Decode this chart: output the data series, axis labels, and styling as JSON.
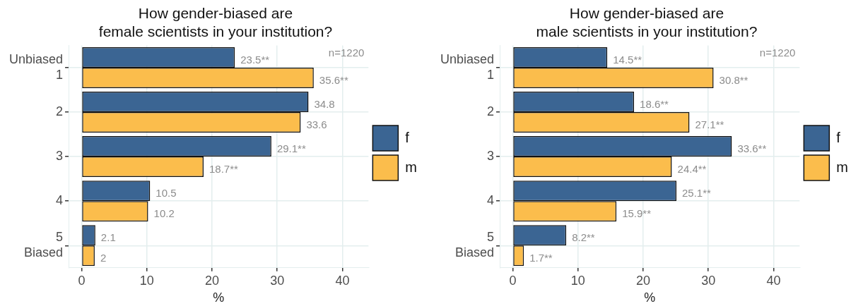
{
  "chart_data": [
    {
      "type": "bar",
      "orientation": "horizontal",
      "title": "How gender-biased are\nfemale scientists in your institution?",
      "xlabel": "%",
      "categories": [
        "Unbiased\n1",
        "2",
        "3",
        "4",
        "5\nBiased"
      ],
      "series": [
        {
          "name": "f",
          "color": "#3b6593",
          "values": [
            23.5,
            34.8,
            29.1,
            10.5,
            2.1
          ],
          "value_labels": [
            "23.5**",
            "34.8",
            "29.1**",
            "10.5",
            "2.1"
          ]
        },
        {
          "name": "m",
          "color": "#fbbd4c",
          "values": [
            35.6,
            33.6,
            18.7,
            10.2,
            2
          ],
          "value_labels": [
            "35.6**",
            "33.6",
            "18.7**",
            "10.2",
            "2"
          ]
        }
      ],
      "xlim": [
        -2,
        44
      ],
      "xticks": [
        0,
        10,
        20,
        30,
        40
      ],
      "grid": true,
      "legend": "right",
      "annotations": [
        "n=1220"
      ]
    },
    {
      "type": "bar",
      "orientation": "horizontal",
      "title": "How gender-biased are\nmale scientists in your institution?",
      "xlabel": "%",
      "categories": [
        "Unbiased\n1",
        "2",
        "3",
        "4",
        "5\nBiased"
      ],
      "series": [
        {
          "name": "f",
          "color": "#3b6593",
          "values": [
            14.5,
            18.6,
            33.6,
            25.1,
            8.2
          ],
          "value_labels": [
            "14.5**",
            "18.6**",
            "33.6**",
            "25.1**",
            "8.2**"
          ]
        },
        {
          "name": "m",
          "color": "#fbbd4c",
          "values": [
            30.8,
            27.1,
            24.4,
            15.9,
            1.7
          ],
          "value_labels": [
            "30.8**",
            "27.1**",
            "24.4**",
            "15.9**",
            "1.7**"
          ]
        }
      ],
      "xlim": [
        -2,
        44
      ],
      "xticks": [
        0,
        10,
        20,
        30,
        40
      ],
      "grid": true,
      "legend": "right",
      "annotations": [
        "n=1220"
      ]
    }
  ]
}
